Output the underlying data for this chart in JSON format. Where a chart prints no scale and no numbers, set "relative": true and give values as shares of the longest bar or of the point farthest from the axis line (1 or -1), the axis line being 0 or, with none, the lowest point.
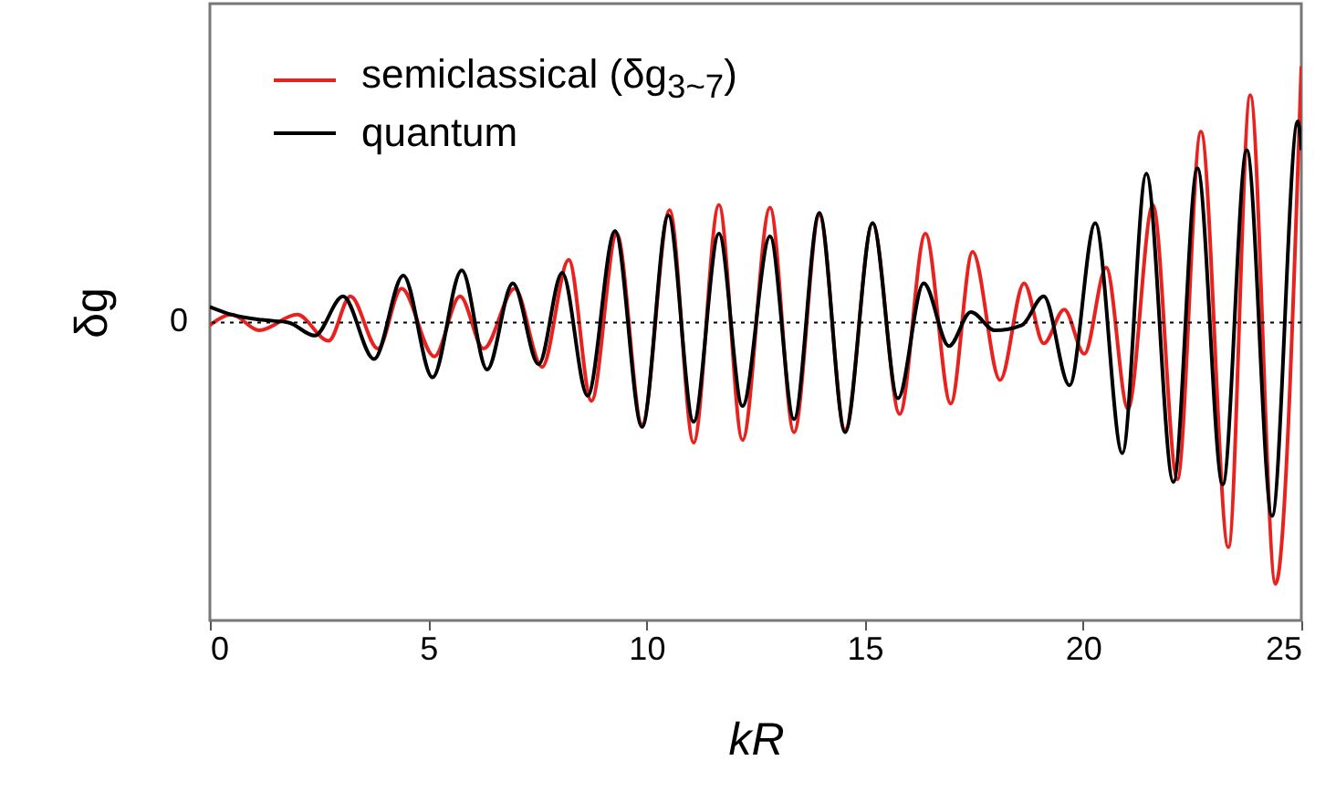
{
  "chart_data": {
    "type": "line",
    "relative": true,
    "xlabel": "kR",
    "ylabel": "δg",
    "xlim": [
      0,
      25
    ],
    "xticks": [
      0,
      5,
      10,
      15,
      20,
      25
    ],
    "legend": "top left",
    "grid": false,
    "line_style": "solid",
    "marker": "none",
    "ref_lines": [
      {
        "axis": "y",
        "value": 0,
        "label": "0",
        "line_style": "dotted",
        "color": "#000000"
      }
    ],
    "series": [
      {
        "name": "semiclassical (δg$_{3~7}$)",
        "color": "#e8231f",
        "x": [
          0,
          0.5,
          1.13,
          2.0,
          2.72,
          3.22,
          3.85,
          4.39,
          5.14,
          5.73,
          6.27,
          6.98,
          7.61,
          8.22,
          8.74,
          9.32,
          9.9,
          10.53,
          11.08,
          11.66,
          12.2,
          12.83,
          13.38,
          13.96,
          14.55,
          15.18,
          15.8,
          16.39,
          16.97,
          17.47,
          18.1,
          18.65,
          19.1,
          19.57,
          20.03,
          20.53,
          21.03,
          21.6,
          22.16,
          22.7,
          23.33,
          23.83,
          24.41,
          25
        ],
        "values": [
          -0.01,
          0.03,
          -0.03,
          0.03,
          -0.07,
          0.1,
          -0.1,
          0.13,
          -0.13,
          0.1,
          -0.1,
          0.13,
          -0.17,
          0.24,
          -0.3,
          0.34,
          -0.39,
          0.43,
          -0.46,
          0.45,
          -0.45,
          0.44,
          -0.42,
          0.41,
          -0.41,
          0.38,
          -0.35,
          0.34,
          -0.31,
          0.27,
          -0.22,
          0.15,
          -0.08,
          0.05,
          -0.12,
          0.21,
          -0.33,
          0.45,
          -0.6,
          0.73,
          -0.86,
          0.87,
          -1.0,
          0.98
        ]
      },
      {
        "name": "quantum",
        "color": "#000000",
        "x": [
          0,
          0.5,
          1.2,
          1.8,
          2.4,
          3.05,
          3.76,
          4.43,
          5.1,
          5.77,
          6.35,
          6.94,
          7.53,
          8.07,
          8.65,
          9.28,
          9.9,
          10.5,
          11.08,
          11.66,
          12.2,
          12.83,
          13.38,
          13.96,
          14.55,
          15.18,
          15.76,
          16.35,
          16.93,
          17.43,
          17.98,
          18.6,
          19.1,
          19.69,
          20.28,
          20.9,
          21.45,
          22.07,
          22.62,
          23.2,
          23.75,
          24.33,
          24.92,
          25
        ],
        "values": [
          0.06,
          0.03,
          0.01,
          0.0,
          -0.05,
          0.1,
          -0.14,
          0.18,
          -0.21,
          0.2,
          -0.18,
          0.15,
          -0.16,
          0.19,
          -0.28,
          0.35,
          -0.4,
          0.41,
          -0.38,
          0.34,
          -0.32,
          0.33,
          -0.37,
          0.42,
          -0.42,
          0.38,
          -0.29,
          0.15,
          -0.09,
          0.04,
          -0.03,
          -0.01,
          0.1,
          -0.24,
          0.38,
          -0.5,
          0.57,
          -0.61,
          0.59,
          -0.62,
          0.66,
          -0.74,
          0.77,
          0.66
        ]
      }
    ]
  }
}
